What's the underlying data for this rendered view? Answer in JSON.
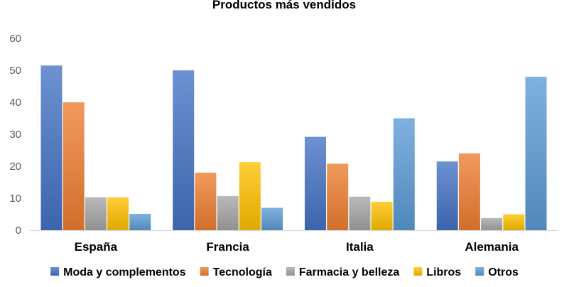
{
  "chart_data": {
    "type": "bar",
    "title": "Productos más vendidos",
    "xlabel": "",
    "ylabel": "",
    "categories": [
      "España",
      "Francia",
      "Italia",
      "Alemania"
    ],
    "ylim": [
      0,
      60
    ],
    "yticks": [
      0,
      10,
      20,
      30,
      40,
      50,
      60
    ],
    "grid": false,
    "legend": "bottom",
    "series": [
      {
        "name": "Moda y complementos",
        "color": "#4472c4",
        "values": [
          51.5,
          50,
          29.2,
          21.5
        ]
      },
      {
        "name": "Tecnología",
        "color": "#ed7d31",
        "values": [
          40,
          18,
          20.8,
          24
        ]
      },
      {
        "name": "Farmacia y belleza",
        "color": "#a5a5a5",
        "values": [
          10.3,
          10.7,
          10.5,
          3.8
        ]
      },
      {
        "name": "Libros",
        "color": "#ffc000",
        "values": [
          10.3,
          21.3,
          8.9,
          5
        ]
      },
      {
        "name": "Otros",
        "color": "#5b9bd5",
        "values": [
          5.1,
          7,
          35,
          48
        ]
      }
    ]
  }
}
